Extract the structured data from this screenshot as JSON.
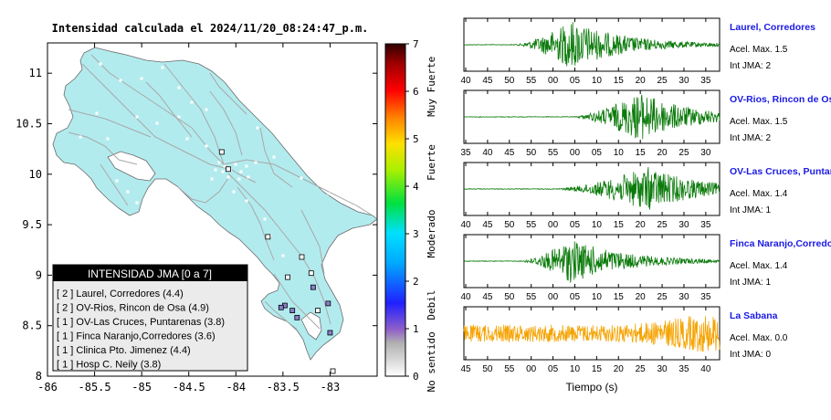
{
  "map": {
    "title": "Intensidad calculada el 2024/11/20_08:24:47_p.m.",
    "x_ticks": [
      "-86",
      "-85.5",
      "-85",
      "-84.5",
      "-84",
      "-83.5",
      "-83"
    ],
    "y_ticks": [
      "11",
      "10.5",
      "10",
      "9.5",
      "9",
      "8.5",
      "8"
    ],
    "legend": {
      "title": "INTENSIDAD JMA [0 a 7]",
      "items": [
        "[ 2 ]  Laurel, Corredores (4.4)",
        "[ 2 ]  OV-Rios, Rincon de Osa (4.9)",
        "[ 1 ]  OV-Las Cruces, Puntarenas (3.8)",
        "[ 1 ]  Finca Naranjo,Corredores (3.6)",
        "[ 1 ]  Clinica Pto. Jimenez (4.4)",
        "[ 1 ]  Hosp C. Neily (3.8)"
      ]
    }
  },
  "colorbar": {
    "ticks": [
      "0",
      "1",
      "2",
      "3",
      "4",
      "5",
      "6",
      "7"
    ],
    "categories": [
      "No sentido",
      "Debil",
      "Moderado",
      "Fuerte",
      "Muy Fuerte"
    ]
  },
  "stations": [
    {
      "name": "Laurel, Corredores",
      "acel": "Acel. Max. 1.5",
      "int": "Int JMA: 2",
      "ticks": [
        "40",
        "45",
        "50",
        "55",
        "00",
        "05",
        "10",
        "15",
        "20",
        "25",
        "30",
        "35"
      ],
      "color": "#0a7a0a"
    },
    {
      "name": "OV-Rios, Rincon de Os",
      "acel": "Acel. Max. 1.5",
      "int": "Int JMA: 2",
      "ticks": [
        "35",
        "40",
        "45",
        "50",
        "55",
        "00",
        "05",
        "10",
        "15",
        "20",
        "25",
        "30"
      ],
      "color": "#0a7a0a"
    },
    {
      "name": "OV-Las Cruces, Puntar",
      "acel": "Acel. Max. 1.4",
      "int": "Int JMA: 1",
      "ticks": [
        "40",
        "45",
        "50",
        "55",
        "00",
        "05",
        "10",
        "15",
        "20",
        "25",
        "30",
        "35"
      ],
      "color": "#0a7a0a"
    },
    {
      "name": "Finca Naranjo,Corredor",
      "acel": "Acel. Max. 1.4",
      "int": "Int JMA: 1",
      "ticks": [
        "40",
        "45",
        "50",
        "55",
        "00",
        "05",
        "10",
        "15",
        "20",
        "25",
        "30",
        "35"
      ],
      "color": "#0a7a0a"
    },
    {
      "name": "La Sabana",
      "acel": "Acel. Max. 0.0",
      "int": "Int JMA: 0",
      "ticks": [
        "45",
        "50",
        "55",
        "00",
        "05",
        "10",
        "15",
        "20",
        "25",
        "30",
        "35",
        "40"
      ],
      "color": "#f5a300"
    }
  ],
  "x_axis_label": "Tiempo (s)",
  "chart_data": {
    "type": "map-and-waveforms",
    "map_xlim": [
      -86,
      -82.5
    ],
    "map_ylim": [
      8,
      11.3
    ],
    "colorbar_range": [
      0,
      7
    ],
    "intensity_legend": [
      {
        "station": "Laurel, Corredores",
        "jma": 2,
        "value": 4.4
      },
      {
        "station": "OV-Rios, Rincon de Osa",
        "jma": 2,
        "value": 4.9
      },
      {
        "station": "OV-Las Cruces, Puntarenas",
        "jma": 1,
        "value": 3.8
      },
      {
        "station": "Finca Naranjo,Corredores",
        "jma": 1,
        "value": 3.6
      },
      {
        "station": "Clinica Pto. Jimenez",
        "jma": 1,
        "value": 4.4
      },
      {
        "station": "Hosp C. Neily",
        "jma": 1,
        "value": 3.8
      }
    ],
    "station_markers": [
      {
        "lon": -83.66,
        "lat": 9.38,
        "jma": 0
      },
      {
        "lon": -83.3,
        "lat": 9.18,
        "jma": 0
      },
      {
        "lon": -83.45,
        "lat": 8.98,
        "jma": 0
      },
      {
        "lon": -83.2,
        "lat": 9.02,
        "jma": 0
      },
      {
        "lon": -83.18,
        "lat": 8.88,
        "jma": 1
      },
      {
        "lon": -83.02,
        "lat": 8.72,
        "jma": 1
      },
      {
        "lon": -83.48,
        "lat": 8.7,
        "jma": 1
      },
      {
        "lon": -83.4,
        "lat": 8.65,
        "jma": 1
      },
      {
        "lon": -83.52,
        "lat": 8.68,
        "jma": 1
      },
      {
        "lon": -83.35,
        "lat": 8.58,
        "jma": 1
      },
      {
        "lon": -83.13,
        "lat": 8.65,
        "jma": 0
      },
      {
        "lon": -83.0,
        "lat": 8.43,
        "jma": 1
      },
      {
        "lon": -82.97,
        "lat": 8.05,
        "jma": 0
      },
      {
        "lon": -84.15,
        "lat": 10.22,
        "jma": 0
      },
      {
        "lon": -84.08,
        "lat": 10.05,
        "jma": 0
      }
    ],
    "waveforms": [
      {
        "station": "Laurel, Corredores",
        "onset_frac": 0.2,
        "peak_frac": 0.42,
        "peak_amp": 1.0,
        "noise": 0.02
      },
      {
        "station": "OV-Rios, Rincon de Os",
        "onset_frac": 0.42,
        "peak_frac": 0.69,
        "peak_amp": 1.0,
        "noise": 0.01
      },
      {
        "station": "OV-Las Cruces, Puntar",
        "onset_frac": 0.36,
        "peak_frac": 0.72,
        "peak_amp": 0.9,
        "noise": 0.02
      },
      {
        "station": "Finca Naranjo,Corredor",
        "onset_frac": 0.22,
        "peak_frac": 0.42,
        "peak_amp": 0.9,
        "noise": 0.02
      },
      {
        "station": "La Sabana",
        "onset_frac": 0.0,
        "peak_frac": 0.86,
        "peak_amp": 0.95,
        "noise": 0.35
      }
    ]
  }
}
